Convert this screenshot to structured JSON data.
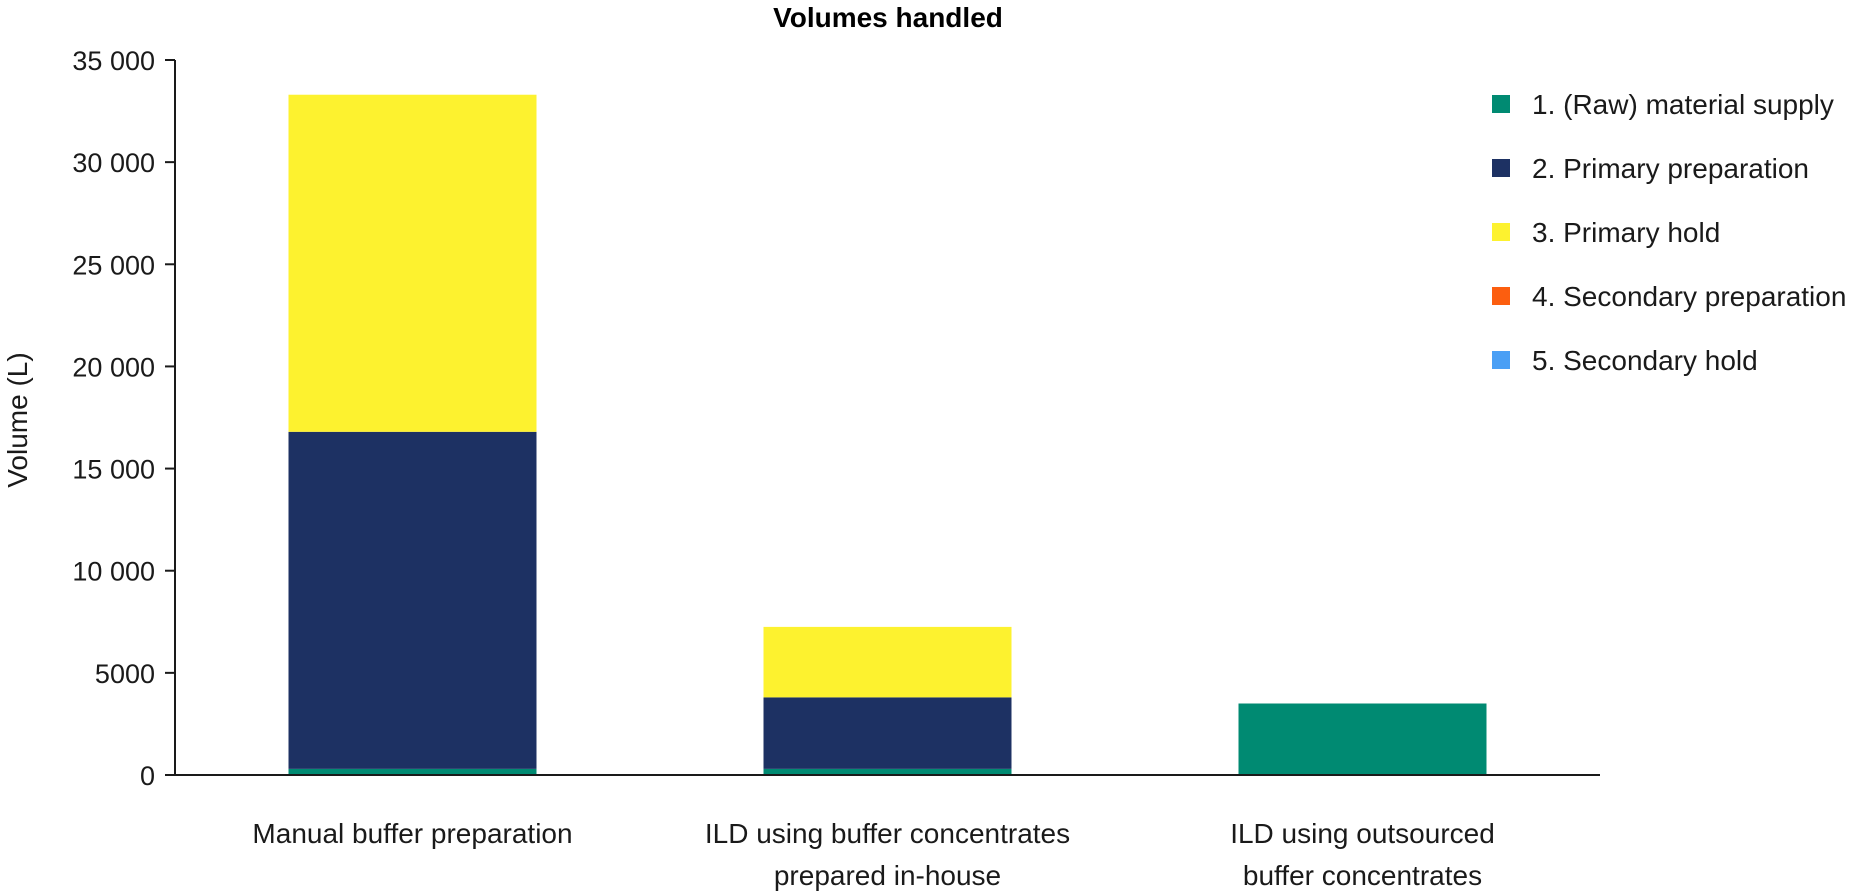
{
  "chart_data": {
    "type": "bar",
    "stacked": true,
    "title": "Volumes handled",
    "xlabel": "",
    "ylabel": "Volume (L)",
    "ylim": [
      0,
      35000
    ],
    "yticks": [
      0,
      5000,
      10000,
      15000,
      20000,
      25000,
      30000,
      35000
    ],
    "ytick_labels": [
      "0",
      "5000",
      "10 000",
      "15 000",
      "20 000",
      "25 000",
      "30 000",
      "35 000"
    ],
    "categories": [
      [
        "Manual buffer preparation"
      ],
      [
        "ILD using buffer concentrates",
        "prepared in-house"
      ],
      [
        "ILD using outsourced",
        "buffer concentrates"
      ]
    ],
    "series": [
      {
        "name": "1. (Raw) material supply",
        "color": "#008a72",
        "values": [
          300,
          300,
          3500
        ]
      },
      {
        "name": "2. Primary preparation",
        "color": "#1d3163",
        "values": [
          16500,
          3500,
          0
        ]
      },
      {
        "name": "3. Primary hold",
        "color": "#fdf22f",
        "values": [
          16500,
          3450,
          0
        ]
      },
      {
        "name": "4. Secondary preparation",
        "color": "#fc5e0f",
        "values": [
          0,
          0,
          0
        ]
      },
      {
        "name": "5. Secondary hold",
        "color": "#4a9ff5",
        "values": [
          0,
          0,
          0
        ]
      }
    ],
    "grid": false,
    "legend_position": "top-right"
  }
}
